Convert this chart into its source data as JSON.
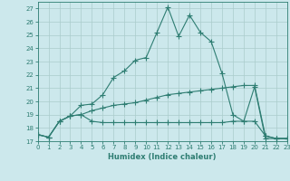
{
  "xlabel": "Humidex (Indice chaleur)",
  "bg_color": "#cce8ec",
  "line_color": "#2e7d72",
  "xlim": [
    0,
    23
  ],
  "ylim": [
    17,
    27.5
  ],
  "xticks": [
    0,
    1,
    2,
    3,
    4,
    5,
    6,
    7,
    8,
    9,
    10,
    11,
    12,
    13,
    14,
    15,
    16,
    17,
    18,
    19,
    20,
    21,
    22,
    23
  ],
  "yticks": [
    17,
    18,
    19,
    20,
    21,
    22,
    23,
    24,
    25,
    26,
    27
  ],
  "series1_x": [
    0,
    1,
    2,
    3,
    4,
    5,
    6,
    7,
    8,
    9,
    10,
    11,
    12,
    13,
    14,
    15,
    16,
    17,
    18,
    19,
    20,
    21,
    22,
    23
  ],
  "series1_y": [
    17.5,
    17.3,
    18.5,
    18.9,
    19.7,
    19.8,
    20.5,
    21.8,
    22.3,
    23.1,
    23.3,
    25.2,
    27.1,
    24.9,
    26.5,
    25.2,
    24.5,
    22.1,
    19.0,
    18.5,
    21.1,
    17.2,
    17.2,
    17.2
  ],
  "series2_x": [
    0,
    1,
    2,
    3,
    4,
    5,
    6,
    7,
    8,
    9,
    10,
    11,
    12,
    13,
    14,
    15,
    16,
    17,
    18,
    19,
    20,
    21,
    22,
    23
  ],
  "series2_y": [
    17.5,
    17.3,
    18.5,
    18.9,
    19.0,
    18.5,
    18.4,
    18.4,
    18.4,
    18.4,
    18.4,
    18.4,
    18.4,
    18.4,
    18.4,
    18.4,
    18.4,
    18.4,
    18.5,
    18.5,
    18.5,
    17.4,
    17.2,
    17.2
  ],
  "series3_x": [
    0,
    1,
    2,
    3,
    4,
    5,
    6,
    7,
    8,
    9,
    10,
    11,
    12,
    13,
    14,
    15,
    16,
    17,
    18,
    19,
    20,
    21,
    22,
    23
  ],
  "series3_y": [
    17.5,
    17.3,
    18.5,
    18.9,
    19.0,
    19.3,
    19.5,
    19.7,
    19.8,
    19.9,
    20.1,
    20.3,
    20.5,
    20.6,
    20.7,
    20.8,
    20.9,
    21.0,
    21.1,
    21.2,
    21.2,
    17.4,
    17.2,
    17.2
  ],
  "grid_color": "#aacccc",
  "markersize": 2.5,
  "linewidth": 0.8,
  "xlabel_fontsize": 6,
  "tick_fontsize": 5
}
